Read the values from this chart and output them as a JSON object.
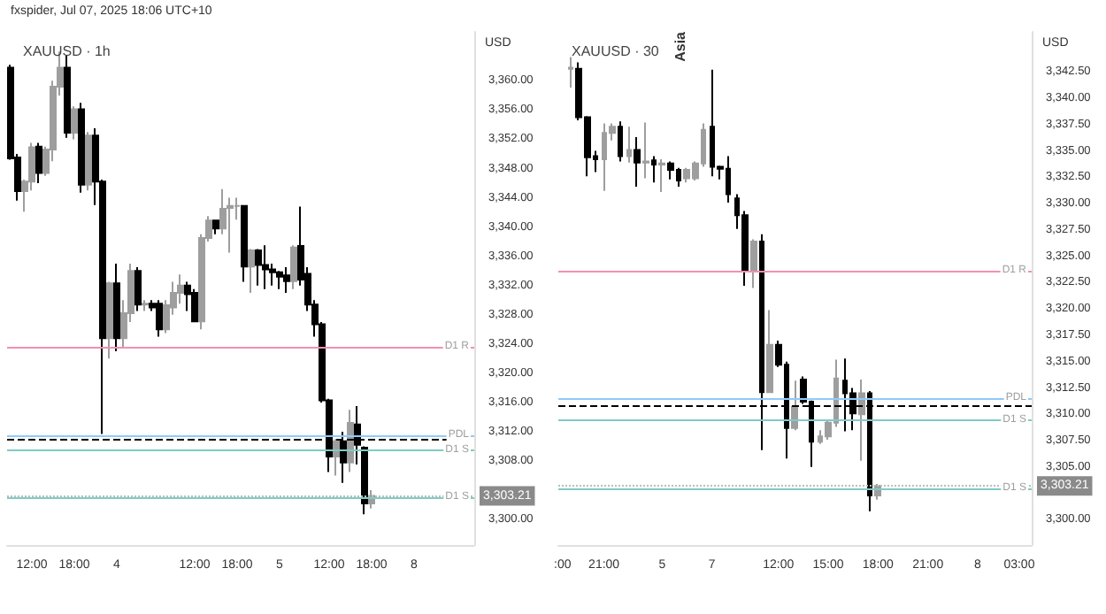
{
  "chart_data": [
    {
      "type": "candlestick",
      "title": "XAUUSD · 1h",
      "ylabel": "USD",
      "annotations": [
        "fxspider, Jul 07, 2025 18:06 UTC+10"
      ],
      "colors": [
        "#000000",
        "#000000",
        "#9e9e9e",
        "#9e9e9e",
        "#000000",
        "#9e9e9e",
        "#9e9e9e",
        "#9e9e9e",
        "#000000",
        "#9e9e9e",
        "#000000",
        "#9e9e9e",
        "#000000",
        "#000000",
        "#9e9e9e",
        "#000000",
        "#9e9e9e",
        "#9e9e9e",
        "#000000",
        "#9e9e9e",
        "#000000",
        "#000000",
        "#9e9e9e",
        "#9e9e9e",
        "#9e9e9e",
        "#000000",
        "#000000",
        "#9e9e9e",
        "#9e9e9e",
        "#000000",
        "#9e9e9e",
        "#9e9e9e",
        "#9e9e9e",
        "#000000",
        "#9e9e9e",
        "#000000",
        "#000000",
        "#000000",
        "#000000",
        "#000000",
        "#9e9e9e",
        "#000000",
        "#000000",
        "#000000",
        "#000000",
        "#000000",
        "#9e9e9e",
        "#000000",
        "#9e9e9e",
        "#000000",
        "#000000",
        "#9e9e9e",
        null,
        null,
        null,
        null,
        null,
        null,
        null,
        null,
        null,
        null,
        null,
        null,
        null,
        null
      ],
      "categories": [
        null,
        null,
        null,
        "12:00",
        null,
        null,
        null,
        null,
        null,
        "18:00",
        null,
        null,
        null,
        null,
        null,
        "4",
        null,
        null,
        null,
        null,
        null,
        null,
        null,
        null,
        null,
        null,
        "12:00",
        null,
        null,
        null,
        null,
        null,
        "18:00",
        null,
        null,
        null,
        null,
        null,
        "5",
        null,
        null,
        null,
        null,
        null,
        null,
        "12:00",
        null,
        null,
        null,
        null,
        null,
        "18:00",
        null,
        null,
        null,
        null,
        null,
        "8",
        null,
        null,
        null,
        null,
        null,
        null,
        null,
        null
      ],
      "ohlc": [
        [
          3361.8,
          3362.2,
          3349.2,
          3349.4
        ],
        [
          3349.5,
          3350.0,
          3343.6,
          3344.9
        ],
        [
          3344.9,
          3346.5,
          3342.1,
          3346.2
        ],
        [
          3346.2,
          3351.5,
          3345.0,
          3350.9
        ],
        [
          3351.0,
          3351.5,
          3346.0,
          3347.4
        ],
        [
          3347.4,
          3351.0,
          3347.0,
          3350.6
        ],
        [
          3350.6,
          3360.0,
          3349.0,
          3359.2
        ],
        [
          3359.2,
          3364.0,
          3358.0,
          3361.8
        ],
        [
          3361.8,
          3363.5,
          3352.2,
          3352.9
        ],
        [
          3352.9,
          3356.5,
          3352.0,
          3356.1
        ],
        [
          3356.1,
          3357.0,
          3344.7,
          3345.8
        ],
        [
          3345.8,
          3353.0,
          3345.0,
          3352.5
        ],
        [
          3352.5,
          3353.5,
          3343.0,
          3346.2
        ],
        [
          3346.2,
          3346.5,
          3311.7,
          3324.8
        ],
        [
          3324.8,
          3332.5,
          3322.0,
          3332.3
        ],
        [
          3332.3,
          3335.0,
          3323.0,
          3324.8
        ],
        [
          3324.8,
          3330.0,
          3323.5,
          3328.2
        ],
        [
          3328.2,
          3335.0,
          3327.0,
          3334.0
        ],
        [
          3334.0,
          3334.5,
          3328.5,
          3329.4
        ],
        [
          3329.4,
          3330.0,
          3328.5,
          3329.5
        ],
        [
          3329.5,
          3330.0,
          3328.5,
          3329.0
        ],
        [
          3329.5,
          3330.0,
          3325.0,
          3326.0
        ],
        [
          3326.0,
          3330.0,
          3325.5,
          3329.3
        ],
        [
          3329.0,
          3332.5,
          3328.0,
          3331.0
        ],
        [
          3331.0,
          3333.5,
          3329.5,
          3332.0
        ],
        [
          3332.0,
          3332.5,
          3328.5,
          3330.8
        ],
        [
          3331.0,
          3331.5,
          3327.0,
          3327.1
        ],
        [
          3327.1,
          3339.0,
          3326.0,
          3338.5
        ],
        [
          3338.5,
          3341.5,
          3338.0,
          3340.9
        ],
        [
          3340.9,
          3341.0,
          3339.0,
          3339.8
        ],
        [
          3339.8,
          3345.2,
          3339.0,
          3342.5
        ],
        [
          3342.6,
          3344.0,
          3336.5,
          3342.9
        ],
        [
          3342.9,
          3344.0,
          3341.0,
          3342.9
        ],
        [
          3342.9,
          3343.0,
          3332.5,
          3334.6
        ],
        [
          3334.6,
          3337.0,
          3331.0,
          3336.8
        ],
        [
          3336.8,
          3337.0,
          3332.0,
          3334.8
        ],
        [
          3334.8,
          3337.5,
          3331.5,
          3334.2
        ],
        [
          3334.2,
          3335.0,
          3332.0,
          3333.8
        ],
        [
          3333.8,
          3334.0,
          3331.5,
          3333.2
        ],
        [
          3333.4,
          3334.5,
          3331.0,
          3332.6
        ],
        [
          3332.6,
          3337.5,
          3331.5,
          3337.2
        ],
        [
          3337.4,
          3342.8,
          3332.0,
          3332.8
        ],
        [
          3333.6,
          3334.5,
          3328.5,
          3329.4
        ],
        [
          3329.4,
          3330.0,
          3325.0,
          3326.7
        ],
        [
          3326.7,
          3327.0,
          3316.0,
          3316.3
        ],
        [
          3316.3,
          3316.5,
          3306.5,
          3308.6
        ],
        [
          3308.6,
          3311.0,
          3306.0,
          3310.7
        ],
        [
          3310.7,
          3312.0,
          3305.0,
          3307.8
        ],
        [
          3307.8,
          3315.0,
          3306.5,
          3313.2
        ],
        [
          3313.0,
          3315.5,
          3307.5,
          3310.2
        ],
        [
          3309.8,
          3310.0,
          3300.7,
          3302.2
        ],
        [
          3302.2,
          3304.0,
          3301.5,
          3303.21
        ],
        null,
        null,
        null,
        null,
        null,
        null,
        null,
        null,
        null,
        null,
        null,
        null,
        null,
        null
      ],
      "ylim": [
        3296.5,
        3366.7
      ],
      "yticks": [
        {
          "value": 3300,
          "label": "3,300.00"
        },
        {
          "value": 3308,
          "label": "3,308.00"
        },
        {
          "value": 3312,
          "label": "3,312.00"
        },
        {
          "value": 3316,
          "label": "3,316.00"
        },
        {
          "value": 3320,
          "label": "3,320.00"
        },
        {
          "value": 3324,
          "label": "3,324.00"
        },
        {
          "value": 3328,
          "label": "3,328.00"
        },
        {
          "value": 3332,
          "label": "3,332.00"
        },
        {
          "value": 3336,
          "label": "3,336.00"
        },
        {
          "value": 3340,
          "label": "3,340.00"
        },
        {
          "value": 3344,
          "label": "3,344.00"
        },
        {
          "value": 3348,
          "label": "3,348.00"
        },
        {
          "value": 3352,
          "label": "3,352.00"
        },
        {
          "value": 3356,
          "label": "3,356.00"
        },
        {
          "value": 3360,
          "label": "3,360.00"
        }
      ],
      "ref_lines": [
        {
          "axis": "y",
          "value": 3323.6,
          "label": "D1 R",
          "color": "#f48fb1"
        },
        {
          "axis": "y",
          "value": 3311.5,
          "label": "PDL",
          "color": "#90caf9"
        },
        {
          "axis": "y",
          "value": 3309.4,
          "label": "D1 S",
          "color": "#80cbc4"
        },
        {
          "axis": "y",
          "value": 3303.0,
          "label": "D1 S",
          "color": "#80cbc4"
        },
        {
          "axis": "y",
          "value": 3310.9,
          "color": "#000000",
          "line_style": "dashed"
        },
        {
          "axis": "y",
          "value": 3303.21,
          "label": "3,303.21",
          "color": "#bdbdbd",
          "line_style": "dotted"
        }
      ]
    },
    {
      "type": "candlestick",
      "title": "XAUUSD · 30",
      "ylabel": "USD",
      "annotations": [
        "Asia"
      ],
      "colors": [
        null,
        "#9e9e9e",
        "#000000",
        "#000000",
        "#000000",
        "#9e9e9e",
        "#9e9e9e",
        "#000000",
        "#9e9e9e",
        "#000000",
        "#9e9e9e",
        "#000000",
        "#9e9e9e",
        "#000000",
        "#000000",
        "#9e9e9e",
        "#9e9e9e",
        "#9e9e9e",
        "#000000",
        "#000000",
        "#000000",
        "#000000",
        "#000000",
        "#9e9e9e",
        "#000000",
        "#9e9e9e",
        "#000000",
        "#000000",
        "#9e9e9e",
        "#000000",
        "#000000",
        "#9e9e9e",
        "#9e9e9e",
        "#9e9e9e",
        "#000000",
        "#000000",
        "#9e9e9e",
        "#000000",
        "#9e9e9e",
        null,
        null,
        null,
        null,
        null,
        null,
        null,
        null,
        null,
        null,
        null,
        null,
        null,
        null,
        null,
        null,
        null,
        null
      ],
      "categories": [
        ":00",
        null,
        null,
        null,
        null,
        "21:00",
        null,
        null,
        null,
        null,
        null,
        null,
        "5",
        null,
        null,
        null,
        null,
        null,
        "7",
        null,
        null,
        null,
        null,
        null,
        null,
        null,
        "12:00",
        null,
        null,
        null,
        null,
        null,
        "15:00",
        null,
        null,
        null,
        null,
        null,
        "18:00",
        null,
        null,
        null,
        null,
        null,
        "21:00",
        null,
        null,
        null,
        null,
        null,
        "8",
        null,
        null,
        null,
        null,
        "03:00",
        null
      ],
      "ohlc": [
        null,
        [
          3342.8,
          3343.9,
          3341.0,
          3342.9
        ],
        [
          3342.8,
          3343.4,
          3337.9,
          3338.2
        ],
        [
          3338.2,
          3338.3,
          3332.6,
          3334.4
        ],
        [
          3334.5,
          3335.0,
          3333.0,
          3334.2
        ],
        [
          3334.2,
          3337.6,
          3331.2,
          3336.7
        ],
        [
          3336.7,
          3337.6,
          3336.0,
          3337.3
        ],
        [
          3337.3,
          3337.8,
          3334.0,
          3334.5
        ],
        [
          3334.5,
          3337.3,
          3333.9,
          3335.1
        ],
        [
          3335.1,
          3336.3,
          3331.6,
          3333.9
        ],
        [
          3333.9,
          3337.7,
          3332.4,
          3334.0
        ],
        [
          3334.1,
          3334.5,
          3332.0,
          3333.7
        ],
        [
          3333.7,
          3334.2,
          3331.1,
          3333.8
        ],
        [
          3333.8,
          3334.0,
          3332.3,
          3333.2
        ],
        [
          3333.2,
          3333.4,
          3331.6,
          3332.2
        ],
        [
          3332.4,
          3333.4,
          3332.0,
          3333.2
        ],
        [
          3332.4,
          3334.0,
          3332.2,
          3333.8
        ],
        [
          3333.8,
          3337.6,
          3333.5,
          3337.0
        ],
        [
          3337.3,
          3342.7,
          3332.6,
          3333.5
        ],
        [
          3333.5,
          3333.6,
          3332.3,
          3333.3
        ],
        [
          3333.3,
          3334.5,
          3330.1,
          3330.9
        ],
        [
          3330.5,
          3330.9,
          3327.6,
          3328.9
        ],
        [
          3328.9,
          3329.3,
          3322.2,
          3323.6
        ],
        [
          3323.6,
          3326.6,
          3322.0,
          3326.4
        ],
        [
          3326.4,
          3327.1,
          3306.6,
          3312.1
        ],
        [
          3312.1,
          3319.9,
          3312.1,
          3316.6
        ],
        [
          3316.6,
          3317.0,
          3314.5,
          3314.7
        ],
        [
          3314.7,
          3315.0,
          3305.8,
          3308.7
        ],
        [
          3308.7,
          3313.2,
          3308.5,
          3310.7
        ],
        [
          3313.3,
          3313.6,
          3311.0,
          3311.2
        ],
        [
          3311.2,
          3311.3,
          3305.0,
          3307.4
        ],
        [
          3307.4,
          3308.5,
          3307.2,
          3307.9
        ],
        [
          3307.9,
          3309.5,
          3307.6,
          3309.2
        ],
        [
          3309.2,
          3315.2,
          3308.8,
          3313.4
        ],
        [
          3313.2,
          3315.3,
          3308.4,
          3312.0
        ],
        [
          3312.0,
          3312.5,
          3308.5,
          3310.1
        ],
        [
          3310.0,
          3313.3,
          3305.6,
          3312.0
        ],
        [
          3312.0,
          3312.2,
          3300.8,
          3302.3
        ],
        [
          3302.3,
          3303.4,
          3301.9,
          3303.21
        ],
        null,
        null,
        null,
        null,
        null,
        null,
        null,
        null,
        null,
        null,
        null,
        null,
        null,
        null,
        null,
        null,
        null,
        null
      ],
      "ylim": [
        3297.6,
        3346.3
      ],
      "yticks": [
        {
          "value": 3300,
          "label": "3,300.00"
        },
        {
          "value": 3305,
          "label": "3,305.00"
        },
        {
          "value": 3307.5,
          "label": "3,307.50"
        },
        {
          "value": 3310,
          "label": "3,310.00"
        },
        {
          "value": 3312.5,
          "label": "3,312.50"
        },
        {
          "value": 3315,
          "label": "3,315.00"
        },
        {
          "value": 3317.5,
          "label": "3,317.50"
        },
        {
          "value": 3320,
          "label": "3,320.00"
        },
        {
          "value": 3322.5,
          "label": "3,322.50"
        },
        {
          "value": 3325,
          "label": "3,325.00"
        },
        {
          "value": 3327.5,
          "label": "3,327.50"
        },
        {
          "value": 3330,
          "label": "3,330.00"
        },
        {
          "value": 3332.5,
          "label": "3,332.50"
        },
        {
          "value": 3335,
          "label": "3,335.00"
        },
        {
          "value": 3337.5,
          "label": "3,337.50"
        },
        {
          "value": 3340,
          "label": "3,340.00"
        },
        {
          "value": 3342.5,
          "label": "3,342.50"
        }
      ],
      "ref_lines": [
        {
          "axis": "y",
          "value": 3323.6,
          "label": "D1 R",
          "color": "#f48fb1"
        },
        {
          "axis": "y",
          "value": 3311.5,
          "label": "PDL",
          "color": "#90caf9"
        },
        {
          "axis": "y",
          "value": 3309.4,
          "label": "D1 S",
          "color": "#80cbc4"
        },
        {
          "axis": "y",
          "value": 3303.0,
          "label": "D1 S",
          "color": "#80cbc4"
        },
        {
          "axis": "y",
          "value": 3310.9,
          "color": "#000000",
          "line_style": "dashed"
        },
        {
          "axis": "y",
          "value": 3303.21,
          "label": "3,303.21",
          "color": "#bdbdbd",
          "line_style": "dotted"
        }
      ]
    }
  ]
}
